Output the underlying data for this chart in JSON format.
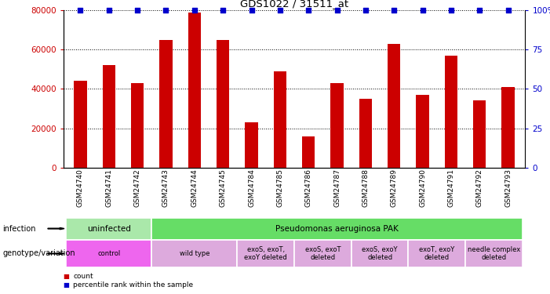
{
  "title": "GDS1022 / 31511_at",
  "samples": [
    "GSM24740",
    "GSM24741",
    "GSM24742",
    "GSM24743",
    "GSM24744",
    "GSM24745",
    "GSM24784",
    "GSM24785",
    "GSM24786",
    "GSM24787",
    "GSM24788",
    "GSM24789",
    "GSM24790",
    "GSM24791",
    "GSM24792",
    "GSM24793"
  ],
  "counts": [
    44000,
    52000,
    43000,
    65000,
    79000,
    65000,
    23000,
    49000,
    16000,
    43000,
    35000,
    63000,
    37000,
    57000,
    34000,
    41000
  ],
  "percentile_values": [
    100,
    100,
    100,
    100,
    100,
    100,
    100,
    100,
    100,
    100,
    100,
    100,
    100,
    100,
    100,
    100
  ],
  "bar_color": "#cc0000",
  "dot_color": "#0000cc",
  "ylim_left": [
    0,
    80000
  ],
  "ylim_right": [
    0,
    100
  ],
  "yticks_left": [
    0,
    20000,
    40000,
    60000,
    80000
  ],
  "yticks_right": [
    0,
    25,
    50,
    75,
    100
  ],
  "yticklabels_right": [
    "0",
    "25",
    "50",
    "75",
    "100%"
  ],
  "infection_groups": [
    {
      "label": "uninfected",
      "start": 0,
      "end": 3,
      "color": "#aae8aa"
    },
    {
      "label": "Pseudomonas aeruginosa PAK",
      "start": 3,
      "end": 16,
      "color": "#66dd66"
    }
  ],
  "genotype_groups": [
    {
      "label": "control",
      "start": 0,
      "end": 3,
      "color": "#ee66ee"
    },
    {
      "label": "wild type",
      "start": 3,
      "end": 6,
      "color": "#ddaadd"
    },
    {
      "label": "exoS, exoT,\nexoY deleted",
      "start": 6,
      "end": 8,
      "color": "#ddaadd"
    },
    {
      "label": "exoS, exoT\ndeleted",
      "start": 8,
      "end": 10,
      "color": "#ddaadd"
    },
    {
      "label": "exoS, exoY\ndeleted",
      "start": 10,
      "end": 12,
      "color": "#ddaadd"
    },
    {
      "label": "exoT, exoY\ndeleted",
      "start": 12,
      "end": 14,
      "color": "#ddaadd"
    },
    {
      "label": "needle complex\ndeleted",
      "start": 14,
      "end": 16,
      "color": "#ddaadd"
    }
  ],
  "infection_label": "infection",
  "genotype_label": "genotype/variation",
  "legend_count_label": "count",
  "legend_pct_label": "percentile rank within the sample"
}
